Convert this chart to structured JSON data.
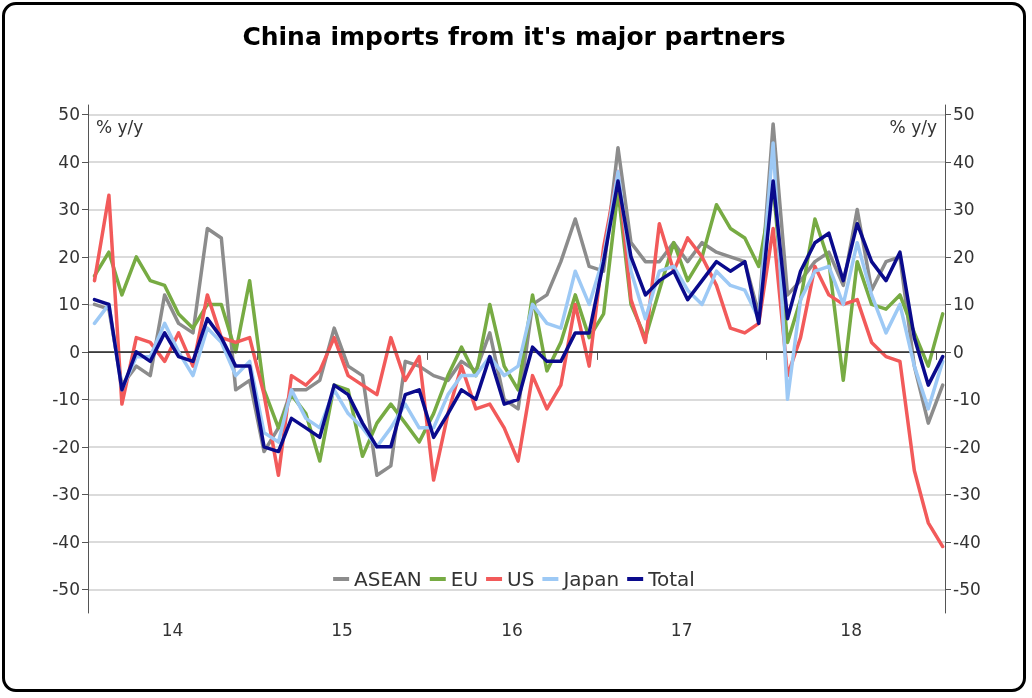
{
  "chart_data": {
    "type": "line",
    "title": "China imports from it's major partners",
    "ylabel": "% y/y",
    "y2label": "% y/y",
    "x": [
      "2014-01-15",
      "2014-02-15",
      "2014-03-15",
      "2014-04-15",
      "2014-05-15",
      "2014-06-15",
      "2014-07-15",
      "2014-08-15",
      "2014-09-15",
      "2014-10-15",
      "2014-11-15",
      "2014-12-15",
      "2015-01-15",
      "2015-02-15",
      "2015-03-15",
      "2015-04-15",
      "2015-05-15",
      "2015-06-15",
      "2015-07-15",
      "2015-08-15",
      "2015-09-15",
      "2015-10-15",
      "2015-11-15",
      "2015-12-15",
      "2016-01-15",
      "2016-02-15",
      "2016-03-15",
      "2016-04-15",
      "2016-05-15",
      "2016-06-15",
      "2016-07-15",
      "2016-08-15",
      "2016-09-15",
      "2016-10-15",
      "2016-11-15",
      "2016-12-15",
      "2017-01-15",
      "2017-02-15",
      "2017-03-15",
      "2017-04-15",
      "2017-05-15",
      "2017-06-15",
      "2017-07-15",
      "2017-08-15",
      "2017-09-15",
      "2017-10-15",
      "2017-11-15",
      "2017-12-15",
      "2018-01-15",
      "2018-02-15",
      "2018-03-15",
      "2018-04-15",
      "2018-05-15",
      "2018-06-15",
      "2018-07-15",
      "2018-08-15",
      "2018-09-15",
      "2018-10-15",
      "2018-11-15",
      "2018-12-15",
      "2019-01-15"
    ],
    "series": [
      {
        "name": "ASEAN",
        "color": "#8c8c8c",
        "values": [
          10,
          9,
          -7,
          -3,
          -5,
          12,
          6,
          4,
          26,
          24,
          -8,
          -6,
          -21,
          -16,
          -8,
          -8,
          -6,
          5,
          -3,
          -5,
          -26,
          -24,
          -2,
          -3,
          -5,
          -6,
          -2,
          -4,
          4,
          -10,
          -12,
          10,
          12,
          19,
          28,
          18,
          17,
          43,
          23,
          19,
          19,
          23,
          19,
          23,
          21,
          20,
          19,
          8,
          48,
          12,
          15,
          19,
          21,
          14,
          30,
          13,
          19,
          20,
          -3,
          -15,
          -7
        ]
      },
      {
        "name": "EU",
        "color": "#77ab43",
        "values": [
          16,
          21,
          12,
          20,
          15,
          14,
          8,
          5,
          10,
          10,
          0,
          15,
          -8,
          -16,
          -9,
          -13,
          -23,
          -7,
          -8,
          -22,
          -15,
          -11,
          -15,
          -19,
          -13,
          -5,
          1,
          -5,
          10,
          -3,
          -8,
          12,
          -4,
          2,
          12,
          3,
          8,
          34,
          10,
          3,
          13,
          23,
          15,
          20,
          31,
          26,
          24,
          18,
          35,
          2,
          11,
          28,
          19,
          -6,
          19,
          10,
          9,
          12,
          4,
          -3,
          8
        ]
      },
      {
        "name": "US",
        "color": "#f25a5a",
        "values": [
          15,
          33,
          -11,
          3,
          2,
          -2,
          4,
          -3,
          12,
          3,
          2,
          3,
          -9,
          -26,
          -5,
          -7,
          -4,
          3,
          -5,
          -7,
          -9,
          3,
          -6,
          -1,
          -27,
          -13,
          -3,
          -12,
          -11,
          -16,
          -23,
          -5,
          -12,
          -7,
          10,
          -3,
          22,
          38,
          11,
          2,
          27,
          17,
          24,
          20,
          14,
          5,
          4,
          6,
          26,
          -5,
          3,
          18,
          12,
          10,
          11,
          2,
          -1,
          -2,
          -25,
          -36,
          -41
        ]
      },
      {
        "name": "Japan",
        "color": "#9dc9f5",
        "values": [
          6,
          10,
          -8,
          -1,
          -1,
          6,
          0,
          -5,
          5,
          2,
          -5,
          -2,
          -17,
          -19,
          -8,
          -14,
          -16,
          -8,
          -13,
          -16,
          -20,
          -16,
          -11,
          -16,
          -16,
          -9,
          -5,
          -5,
          -1,
          -5,
          -3,
          10,
          6,
          5,
          17,
          10,
          20,
          38,
          17,
          7,
          17,
          18,
          13,
          10,
          17,
          14,
          13,
          7,
          44,
          -10,
          11,
          17,
          18,
          10,
          23,
          12,
          4,
          10,
          -3,
          -12,
          -2
        ]
      },
      {
        "name": "Total",
        "color": "#0a0a8c",
        "values": [
          11,
          10,
          -8,
          0,
          -2,
          4,
          -1,
          -2,
          7,
          3,
          -3,
          -3,
          -20,
          -21,
          -14,
          -16,
          -18,
          -7,
          -9,
          -15,
          -20,
          -20,
          -9,
          -8,
          -18,
          -13,
          -8,
          -10,
          -1,
          -11,
          -10,
          1,
          -2,
          -2,
          4,
          4,
          19,
          36,
          20,
          12,
          15,
          17,
          11,
          15,
          19,
          17,
          19,
          6,
          36,
          7,
          17,
          23,
          25,
          15,
          27,
          19,
          15,
          21,
          3,
          -7,
          -1
        ]
      }
    ],
    "xlim": [
      "2014-01-01",
      "2019-01-20"
    ],
    "xticks": [
      {
        "value": "2014-01-01",
        "label": null
      },
      {
        "value": "2014-07-02",
        "label": "14"
      },
      {
        "value": "2015-01-01",
        "label": null
      },
      {
        "value": "2015-07-02",
        "label": "15"
      },
      {
        "value": "2016-01-01",
        "label": null
      },
      {
        "value": "2016-07-02",
        "label": "16"
      },
      {
        "value": "2017-01-01",
        "label": null
      },
      {
        "value": "2017-07-02",
        "label": "17"
      },
      {
        "value": "2018-01-01",
        "label": null
      },
      {
        "value": "2018-07-02",
        "label": "18"
      },
      {
        "value": "2019-01-01",
        "label": null
      }
    ],
    "ylim": [
      -55,
      52
    ],
    "yticks": [
      -50,
      -40,
      -30,
      -20,
      -10,
      0,
      10,
      20,
      30,
      40,
      50
    ],
    "y2lim": [
      -55,
      52
    ],
    "y2ticks": [
      -50,
      -40,
      -30,
      -20,
      -10,
      0,
      10,
      20,
      30,
      40,
      50
    ],
    "ref_lines": [
      {
        "axis": "y",
        "value": 0,
        "color": "#333333"
      }
    ],
    "grid": "y",
    "legend": "bottom",
    "marker": "none",
    "line_style": "solid"
  }
}
